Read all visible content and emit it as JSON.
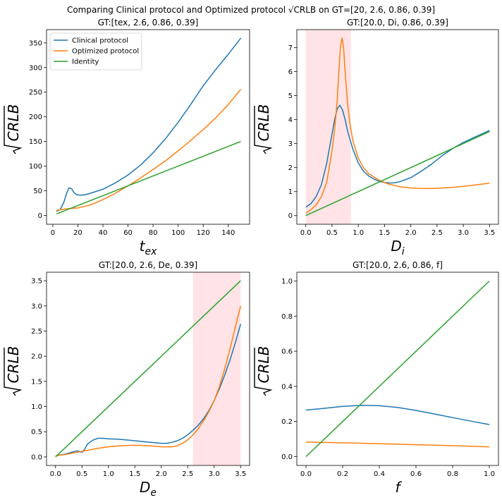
{
  "figure": {
    "suptitle": "Comparing Clinical protocol and Optimized protocol √CRLB on GT=[20, 2.6, 0.86, 0.39]"
  },
  "colors": {
    "clinical": "#1f77b4",
    "optimized": "#ff7f0e",
    "identity": "#2ca02c",
    "shade": "#ffc0c8"
  },
  "chart_data": [
    {
      "type": "line",
      "title": "GT:[tex, 2.6, 0.86, 0.39]",
      "xlabel_main": "t",
      "xlabel_sub": "ex",
      "ylabel": "CRLB",
      "xlim": [
        -5,
        157
      ],
      "ylim": [
        -18,
        377
      ],
      "xticks": [
        0,
        20,
        40,
        60,
        80,
        100,
        120,
        140
      ],
      "yticks": [
        0,
        50,
        100,
        150,
        200,
        250,
        300,
        350
      ],
      "legend": {
        "placement": "top-left",
        "entries": [
          "Clinical protocol",
          "Optimized protocol",
          "Identity"
        ]
      },
      "shade": null,
      "series": [
        {
          "name": "Clinical protocol",
          "x": [
            3,
            6,
            9,
            11,
            13,
            15,
            17,
            19,
            22,
            26,
            30,
            40,
            50,
            60,
            70,
            80,
            90,
            100,
            110,
            120,
            130,
            140,
            150
          ],
          "y": [
            8,
            12,
            28,
            45,
            56,
            54,
            46,
            42,
            41,
            42,
            45,
            53,
            66,
            82,
            102,
            127,
            156,
            189,
            225,
            263,
            296,
            327,
            360
          ]
        },
        {
          "name": "Optimized protocol",
          "x": [
            3,
            10,
            20,
            30,
            40,
            50,
            60,
            70,
            80,
            90,
            100,
            110,
            120,
            130,
            140,
            150
          ],
          "y": [
            10,
            13,
            15,
            21,
            32,
            45,
            60,
            76,
            93,
            111,
            131,
            152,
            174,
            198,
            225,
            256
          ]
        },
        {
          "name": "Identity",
          "x": [
            3,
            150
          ],
          "y": [
            3,
            150
          ]
        }
      ]
    },
    {
      "type": "line",
      "title": "GT:[20.0, Di, 0.86, 0.39]",
      "xlabel_main": "D",
      "xlabel_sub": "i",
      "ylabel": "CRLB",
      "xlim": [
        -0.17,
        3.67
      ],
      "ylim": [
        -0.36,
        7.75
      ],
      "xticks": [
        0.0,
        0.5,
        1.0,
        1.5,
        2.0,
        2.5,
        3.0,
        3.5
      ],
      "yticks": [
        0,
        1,
        2,
        3,
        4,
        5,
        6,
        7
      ],
      "legend": null,
      "shade": [
        0.0,
        0.86
      ],
      "series": [
        {
          "name": "Clinical protocol",
          "x": [
            0.0,
            0.1,
            0.2,
            0.3,
            0.4,
            0.5,
            0.55,
            0.6,
            0.65,
            0.7,
            0.75,
            0.8,
            0.9,
            1.0,
            1.1,
            1.2,
            1.3,
            1.4,
            1.5,
            1.6,
            1.7,
            1.8,
            2.0,
            2.2,
            2.4,
            2.6,
            2.8,
            3.0,
            3.2,
            3.4,
            3.5
          ],
          "y": [
            0.35,
            0.5,
            0.8,
            1.3,
            2.2,
            3.4,
            4.0,
            4.45,
            4.6,
            4.4,
            4.0,
            3.5,
            2.75,
            2.2,
            1.85,
            1.65,
            1.52,
            1.43,
            1.38,
            1.36,
            1.37,
            1.42,
            1.58,
            1.85,
            2.15,
            2.5,
            2.8,
            3.05,
            3.25,
            3.45,
            3.55
          ]
        },
        {
          "name": "Optimized protocol",
          "x": [
            0.0,
            0.1,
            0.2,
            0.3,
            0.4,
            0.5,
            0.55,
            0.6,
            0.63,
            0.66,
            0.69,
            0.72,
            0.75,
            0.8,
            0.85,
            0.9,
            1.0,
            1.1,
            1.2,
            1.3,
            1.4,
            1.5,
            1.6,
            1.8,
            2.0,
            2.2,
            2.4,
            2.6,
            2.8,
            3.0,
            3.2,
            3.5
          ],
          "y": [
            0.1,
            0.25,
            0.45,
            0.8,
            1.4,
            2.7,
            3.6,
            4.8,
            6.0,
            7.0,
            7.4,
            7.0,
            6.0,
            4.6,
            3.7,
            3.1,
            2.4,
            2.0,
            1.75,
            1.6,
            1.48,
            1.38,
            1.3,
            1.2,
            1.15,
            1.13,
            1.13,
            1.15,
            1.18,
            1.22,
            1.27,
            1.35
          ]
        },
        {
          "name": "Identity",
          "x": [
            0.0,
            3.5
          ],
          "y": [
            0.0,
            3.5
          ]
        }
      ]
    },
    {
      "type": "line",
      "title": "GT:[20.0, 2.6, De, 0.39]",
      "xlabel_main": "D",
      "xlabel_sub": "e",
      "ylabel": "CRLB",
      "xlim": [
        -0.17,
        3.67
      ],
      "ylim": [
        -0.17,
        3.67
      ],
      "xticks": [
        0.0,
        0.5,
        1.0,
        1.5,
        2.0,
        2.5,
        3.0,
        3.5
      ],
      "yticks": [
        0.0,
        0.5,
        1.0,
        1.5,
        2.0,
        2.5,
        3.0,
        3.5
      ],
      "legend": null,
      "shade": [
        2.6,
        3.5
      ],
      "series": [
        {
          "name": "Clinical protocol",
          "x": [
            0.0,
            0.1,
            0.2,
            0.3,
            0.4,
            0.45,
            0.5,
            0.55,
            0.6,
            0.7,
            0.8,
            0.9,
            1.0,
            1.2,
            1.4,
            1.6,
            1.8,
            2.0,
            2.1,
            2.2,
            2.3,
            2.4,
            2.5,
            2.6,
            2.7,
            2.8,
            2.9,
            3.0,
            3.1,
            3.2,
            3.3,
            3.4,
            3.5
          ],
          "y": [
            0.02,
            0.04,
            0.06,
            0.09,
            0.12,
            0.11,
            0.09,
            0.15,
            0.25,
            0.33,
            0.37,
            0.37,
            0.36,
            0.35,
            0.33,
            0.31,
            0.29,
            0.27,
            0.27,
            0.29,
            0.32,
            0.37,
            0.44,
            0.53,
            0.63,
            0.76,
            0.92,
            1.12,
            1.36,
            1.63,
            1.93,
            2.27,
            2.64
          ]
        },
        {
          "name": "Optimized protocol",
          "x": [
            0.0,
            0.2,
            0.4,
            0.6,
            0.8,
            1.0,
            1.2,
            1.4,
            1.6,
            1.8,
            2.0,
            2.2,
            2.3,
            2.4,
            2.5,
            2.6,
            2.7,
            2.8,
            2.9,
            3.0,
            3.1,
            3.2,
            3.3,
            3.4,
            3.5
          ],
          "y": [
            0.02,
            0.05,
            0.09,
            0.13,
            0.17,
            0.2,
            0.22,
            0.23,
            0.23,
            0.22,
            0.2,
            0.2,
            0.22,
            0.27,
            0.34,
            0.44,
            0.56,
            0.72,
            0.9,
            1.12,
            1.4,
            1.75,
            2.15,
            2.58,
            3.0
          ]
        },
        {
          "name": "Identity",
          "x": [
            0.0,
            3.5
          ],
          "y": [
            0.0,
            3.5
          ]
        }
      ]
    },
    {
      "type": "line",
      "title": "GT:[20.0, 2.6, 0.86, f]",
      "xlabel_main": "f",
      "xlabel_sub": "",
      "ylabel": "CRLB",
      "xlim": [
        -0.05,
        1.05
      ],
      "ylim": [
        -0.05,
        1.05
      ],
      "xticks": [
        0.0,
        0.2,
        0.4,
        0.6,
        0.8,
        1.0
      ],
      "yticks": [
        0.0,
        0.2,
        0.4,
        0.6,
        0.8,
        1.0
      ],
      "legend": null,
      "shade": null,
      "series": [
        {
          "name": "Clinical protocol",
          "x": [
            0.0,
            0.1,
            0.2,
            0.3,
            0.4,
            0.5,
            0.6,
            0.7,
            0.8,
            0.9,
            1.0
          ],
          "y": [
            0.265,
            0.275,
            0.286,
            0.292,
            0.29,
            0.28,
            0.263,
            0.243,
            0.222,
            0.202,
            0.183
          ]
        },
        {
          "name": "Optimized protocol",
          "x": [
            0.0,
            0.25,
            0.5,
            0.75,
            1.0
          ],
          "y": [
            0.083,
            0.078,
            0.071,
            0.064,
            0.056
          ]
        },
        {
          "name": "Identity",
          "x": [
            0.0,
            1.0
          ],
          "y": [
            0.0,
            1.0
          ]
        }
      ]
    }
  ]
}
